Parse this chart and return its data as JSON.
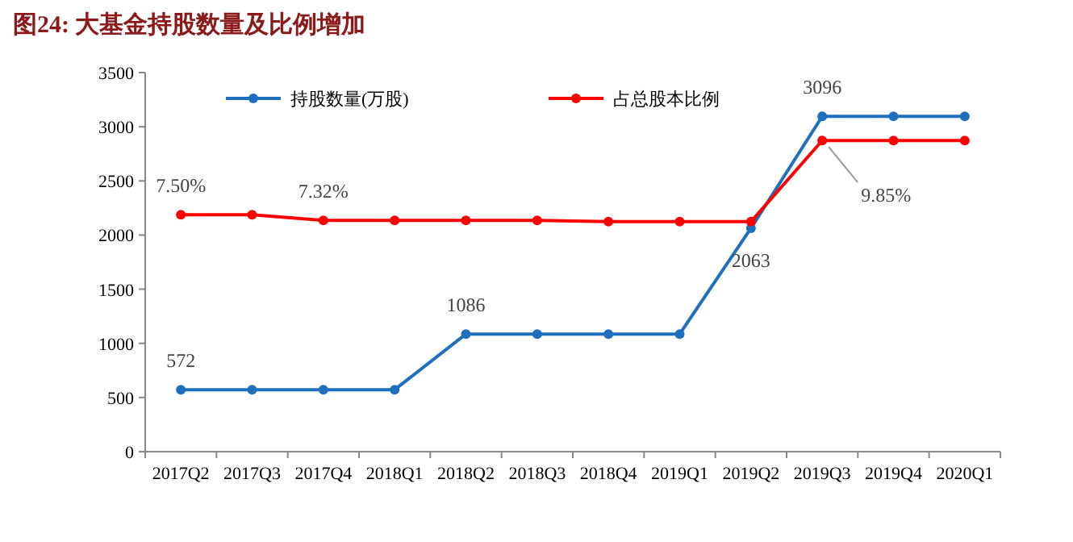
{
  "chart_data": {
    "type": "line",
    "title": "图24: 大基金持股数量及比例增加",
    "categories": [
      "2017Q2",
      "2017Q3",
      "2017Q4",
      "2018Q1",
      "2018Q2",
      "2018Q3",
      "2018Q4",
      "2019Q1",
      "2019Q2",
      "2019Q3",
      "2019Q4",
      "2020Q1"
    ],
    "series": [
      {
        "name": "持股数量(万股)",
        "color": "#1f6fbf",
        "values": [
          572,
          572,
          572,
          572,
          1086,
          1086,
          1086,
          1086,
          2063,
          3096,
          3096,
          3096
        ],
        "value_labels": [
          "572",
          null,
          null,
          null,
          "1086",
          null,
          null,
          null,
          "2063",
          "3096",
          null,
          null
        ]
      },
      {
        "name": "占总股本比例",
        "color": "#ff0000",
        "axis": "y2",
        "values": [
          7.5,
          7.5,
          7.32,
          7.32,
          7.32,
          7.32,
          7.28,
          7.28,
          7.28,
          9.85,
          9.85,
          9.85
        ],
        "value_labels": [
          "7.50%",
          null,
          "7.32%",
          null,
          null,
          null,
          null,
          null,
          null,
          "9.85%",
          null,
          null
        ]
      }
    ],
    "ylim": [
      0,
      3500
    ],
    "yticks": [
      0,
      500,
      1000,
      1500,
      2000,
      2500,
      3000,
      3500
    ],
    "y2lim": [
      0,
      12
    ],
    "legend": "top",
    "marker": "circle",
    "line_style": "solid"
  }
}
